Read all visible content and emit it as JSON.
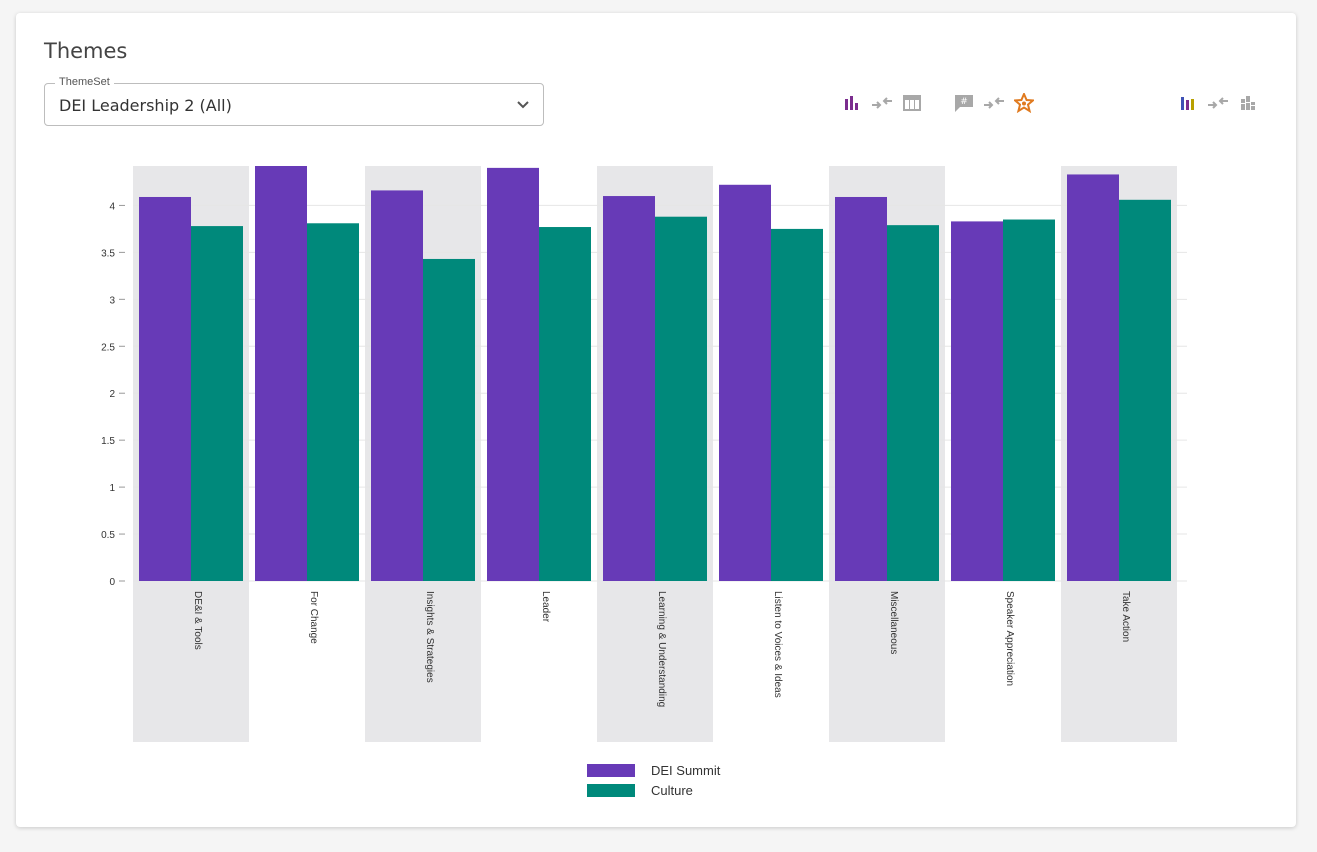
{
  "card": {
    "title": "Themes"
  },
  "themeset": {
    "label": "ThemeSet",
    "value": "DEI Leadership 2 (All)"
  },
  "toolbar": {
    "group1": [
      "bar-chart-icon",
      "compare-arrows-icon",
      "table-icon"
    ],
    "group2": [
      "comment-hash-icon",
      "compare-arrows-icon",
      "star-badge-icon"
    ],
    "group3": [
      "multicolor-bar-chart-icon",
      "compare-arrows-icon",
      "stacked-bar-icon"
    ]
  },
  "colors": {
    "series1": "#673ab7",
    "series2": "#00897b",
    "band": "#e7e7e9",
    "icon_purple": "#7b2d8e",
    "icon_orange": "#e07a1f",
    "icon_gray": "#a8a8a8"
  },
  "chart_data": {
    "type": "bar",
    "categories": [
      "DE&I & Tools",
      "For Change",
      "Insights & Strategies",
      "Leader",
      "Learning & Understanding",
      "Listen to Voices & Ideas",
      "Miscellaneous",
      "Speaker Appreciation",
      "Take Action"
    ],
    "series": [
      {
        "name": "DEI Summit",
        "values": [
          4.09,
          4.42,
          4.16,
          4.4,
          4.1,
          4.22,
          4.09,
          3.83,
          4.33
        ]
      },
      {
        "name": "Culture",
        "values": [
          3.78,
          3.81,
          3.43,
          3.77,
          3.88,
          3.75,
          3.79,
          3.85,
          4.06
        ]
      }
    ],
    "yticks": [
      "0",
      "0.5",
      "1",
      "1.5",
      "2",
      "2.5",
      "3",
      "3.5",
      "4"
    ],
    "ylim": [
      0,
      4.42
    ],
    "grid": true,
    "alternating_bands": true,
    "legend_position": "bottom-center"
  }
}
